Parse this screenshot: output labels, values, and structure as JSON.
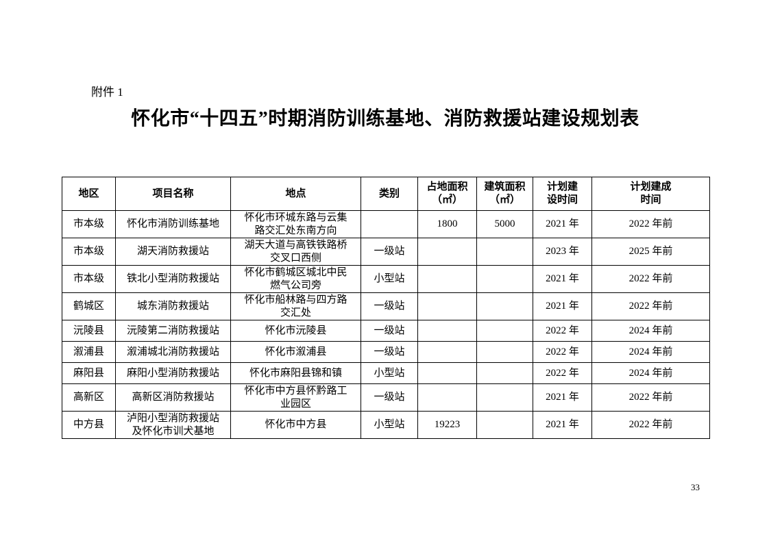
{
  "page": {
    "attachment_label": "附件 1",
    "title": "怀化市“十四五”时期消防训练基地、消防救援站建设规划表",
    "page_number": "33"
  },
  "table": {
    "headers": [
      "地区",
      "项目名称",
      "地点",
      "类别",
      "占地面积\n（㎡）",
      "建筑面积\n（㎡）",
      "计划建\n设时间",
      "计划建成\n时间"
    ],
    "rows": [
      [
        "市本级",
        "怀化市消防训练基地",
        "怀化市环城东路与云集\n路交汇处东南方向",
        "",
        "1800",
        "5000",
        "2021 年",
        "2022 年前"
      ],
      [
        "市本级",
        "湖天消防救援站",
        "湖天大道与高铁铁路桥\n交叉口西侧",
        "一级站",
        "",
        "",
        "2023 年",
        "2025 年前"
      ],
      [
        "市本级",
        "铁北小型消防救援站",
        "怀化市鹤城区城北中民\n燃气公司旁",
        "小型站",
        "",
        "",
        "2021 年",
        "2022 年前"
      ],
      [
        "鹤城区",
        "城东消防救援站",
        "怀化市船林路与四方路\n交汇处",
        "一级站",
        "",
        "",
        "2021 年",
        "2022 年前"
      ],
      [
        "沅陵县",
        "沅陵第二消防救援站",
        "怀化市沅陵县",
        "一级站",
        "",
        "",
        "2022 年",
        "2024 年前"
      ],
      [
        "溆浦县",
        "溆浦城北消防救援站",
        "怀化市溆浦县",
        "一级站",
        "",
        "",
        "2022 年",
        "2024 年前"
      ],
      [
        "麻阳县",
        "麻阳小型消防救援站",
        "怀化市麻阳县锦和镇",
        "小型站",
        "",
        "",
        "2022 年",
        "2024 年前"
      ],
      [
        "高新区",
        "高新区消防救援站",
        "怀化市中方县怀黔路工\n业园区",
        "一级站",
        "",
        "",
        "2021 年",
        "2022 年前"
      ],
      [
        "中方县",
        "泸阳小型消防救援站\n及怀化市训犬基地",
        "怀化市中方县",
        "小型站",
        "19223",
        "",
        "2021 年",
        "2022 年前"
      ]
    ]
  }
}
